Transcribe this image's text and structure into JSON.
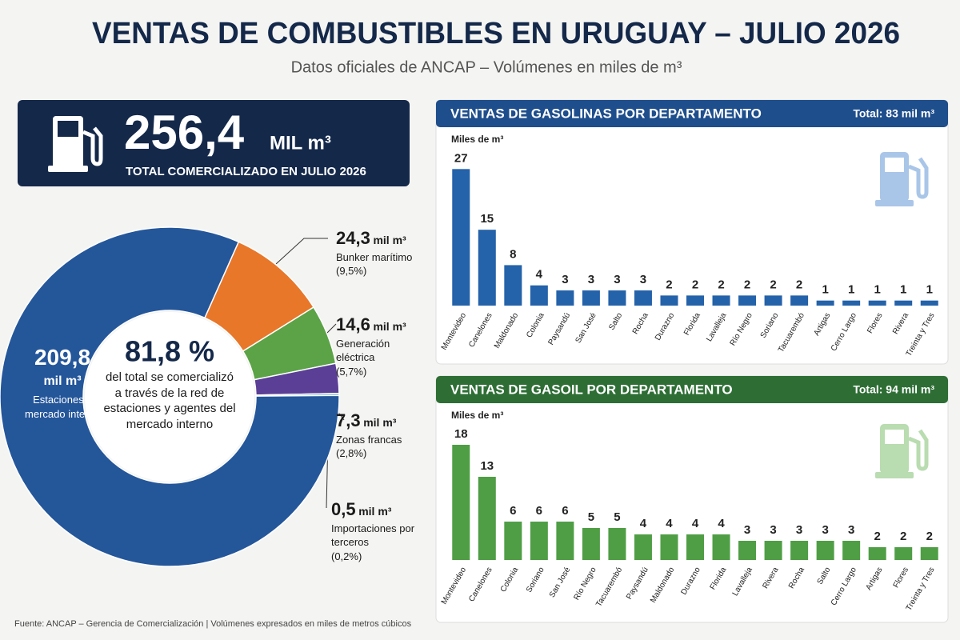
{
  "header": {
    "title": "VENTAS DE COMBUSTIBLES EN URUGUAY – JULIO 2026",
    "subtitle": "Datos oficiales de ANCAP – Volúmenes en miles de m³"
  },
  "kpi": {
    "value": 256.4,
    "value_label": "256,4",
    "unit": "MIL m³",
    "label": "TOTAL COMERCIALIZADO EN JULIO 2026"
  },
  "chart_data": [
    {
      "type": "donut",
      "categories": [
        "Estaciones y mercado interno",
        "Bunker marítimo",
        "Generación eléctrica",
        "Zonas francas",
        "Importaciones por terceros"
      ],
      "values": [
        209.8,
        24.3,
        14.6,
        7.3,
        0.5
      ],
      "value_labels": [
        "209,8",
        "24,3",
        "14,6",
        "7,3",
        "0,5"
      ],
      "unit": "mil m³",
      "shares": [
        81.8,
        9.5,
        5.7,
        2.8,
        0.2
      ],
      "share_labels": [
        "81,8 %",
        "(9,5%)",
        "(5,7%)",
        "(2,8%)",
        "(0,2%)"
      ],
      "center_text": "del total se comercializó a través de la red de estaciones y agentes del mercado interno",
      "colors": [
        "#24569a",
        "#e8772a",
        "#5ba346",
        "#5b3f96",
        "#3aa9c9"
      ]
    },
    {
      "type": "bar",
      "title": "VENTAS DE GASOLINAS POR DEPARTAMENTO",
      "total": 83,
      "total_label": "Total: 83 mil m³",
      "y_label": "Miles de m³",
      "categories": [
        "Montevideo",
        "Canelones",
        "Maldonado",
        "Colonia",
        "Paysandú",
        "San José",
        "Salto",
        "Rocha",
        "Durazno",
        "Florida",
        "Lavalleja",
        "Río Negro",
        "Soriano",
        "Tacuarembó",
        "Artigas",
        "Cerro Largo",
        "Flores",
        "Rivera",
        "Treinta y Tres"
      ],
      "values": [
        27,
        15,
        8,
        4,
        3,
        3,
        3,
        3,
        2,
        2,
        2,
        2,
        2,
        2,
        1,
        1,
        1,
        1,
        1
      ],
      "color": "#2462aa",
      "ylim": [
        0,
        28
      ]
    },
    {
      "type": "bar",
      "title": "VENTAS DE GASOIL POR DEPARTAMENTO",
      "total": 94,
      "total_label": "Total: 94 mil m³",
      "y_label": "Miles de m³",
      "categories": [
        "Montevideo",
        "Canelones",
        "Colonia",
        "Soriano",
        "San José",
        "Río Negro",
        "Tacuarembó",
        "Paysandú",
        "Maldonado",
        "Durazno",
        "Florida",
        "Lavalleja",
        "Rivera",
        "Rocha",
        "Salto",
        "Cerro Largo",
        "Artigas",
        "Flores",
        "Treinta y Tres"
      ],
      "values": [
        18,
        13,
        6,
        6,
        6,
        5,
        5,
        4,
        4,
        4,
        4,
        3,
        3,
        3,
        3,
        3,
        2,
        2,
        2
      ],
      "color": "#4f9e45",
      "ylim": [
        0,
        19
      ]
    }
  ],
  "footer": {
    "source": "Fuente: ANCAP – Gerencia de Comercialización | Volúmenes expresados en miles de metros cúbicos"
  }
}
